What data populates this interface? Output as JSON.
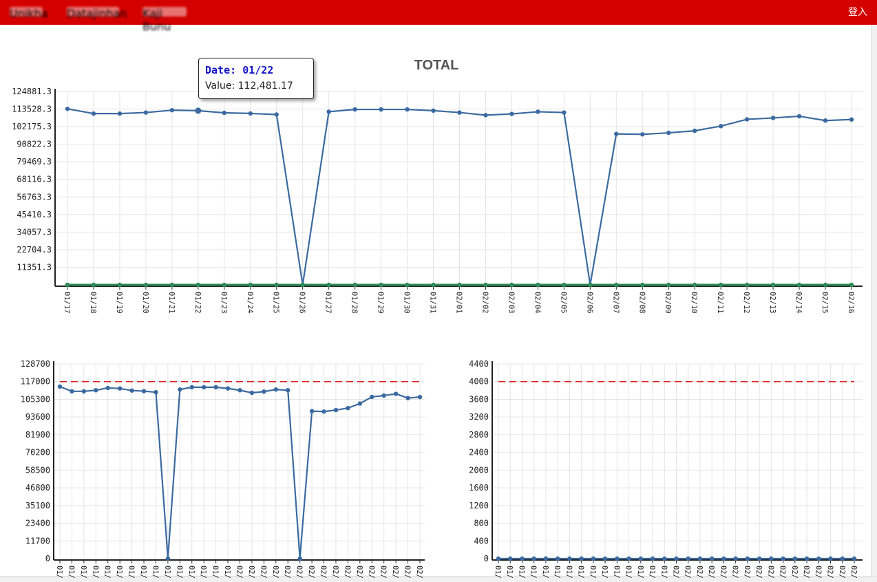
{
  "header": {
    "nav": [
      "Unikha",
      "Datajinhan",
      "Kaji Bunu"
    ],
    "login": "登入"
  },
  "tooltip": {
    "date_label": "Date:",
    "date": "01/22",
    "value_label": "Value:",
    "value": "112,481.17"
  },
  "colors": {
    "brand": "#d40000",
    "series": "#3a6aa0",
    "zero_series": "#2e8b57",
    "threshold": "#e02020"
  },
  "chart_data": [
    {
      "type": "line",
      "title": "TOTAL",
      "categories": [
        "01/17",
        "01/18",
        "01/19",
        "01/20",
        "01/21",
        "01/22",
        "01/23",
        "01/24",
        "01/25",
        "01/26",
        "01/27",
        "01/28",
        "01/29",
        "01/30",
        "01/31",
        "02/01",
        "02/02",
        "02/03",
        "02/04",
        "02/05",
        "02/06",
        "02/07",
        "02/08",
        "02/09",
        "02/10",
        "02/11",
        "02/12",
        "02/13",
        "02/14",
        "02/15",
        "02/16"
      ],
      "yticks": [
        "124881.3",
        "113528.3",
        "102175.3",
        "90822.3",
        "79469.3",
        "68116.3",
        "56763.3",
        "45410.3",
        "34057.3",
        "22704.3",
        "11351.3"
      ],
      "ylim": [
        0,
        124881.3
      ],
      "grid": true,
      "series": [
        {
          "values": [
            113700,
            110600,
            110600,
            111300,
            112800,
            112481,
            111100,
            110700,
            110000,
            0,
            111800,
            113300,
            113300,
            113300,
            112500,
            111300,
            109600,
            110400,
            111800,
            111300,
            0,
            97500,
            97200,
            98200,
            99500,
            102500,
            106900,
            107800,
            108900,
            106100,
            106800
          ]
        },
        {
          "values": [
            0,
            0,
            0,
            0,
            0,
            0,
            0,
            0,
            0,
            0,
            0,
            0,
            0,
            0,
            0,
            0,
            0,
            0,
            0,
            0,
            0,
            0,
            0,
            0,
            0,
            0,
            0,
            0,
            0,
            0,
            0
          ]
        }
      ]
    },
    {
      "type": "line",
      "categories": [
        "01/",
        "01/",
        "01/",
        "01/",
        "01/",
        "01/",
        "01/",
        "01/",
        "01/",
        "01/",
        "01/",
        "01/",
        "01/",
        "01/",
        "01/",
        "02/",
        "02/",
        "02/",
        "02/",
        "02/",
        "02/",
        "02/",
        "02/",
        "02/",
        "02/",
        "02/",
        "02/",
        "02/",
        "02/",
        "02/",
        "02/"
      ],
      "yticks": [
        "128700",
        "117000",
        "105300",
        "93600",
        "81900",
        "70200",
        "58500",
        "46800",
        "35100",
        "23400",
        "11700",
        "0"
      ],
      "ylim": [
        0,
        128700
      ],
      "threshold": 117000,
      "grid": true,
      "series": [
        {
          "values": [
            113700,
            110600,
            110600,
            111300,
            112800,
            112481,
            111100,
            110700,
            110000,
            0,
            111800,
            113300,
            113300,
            113300,
            112500,
            111300,
            109600,
            110400,
            111800,
            111300,
            0,
            97500,
            97200,
            98200,
            99500,
            102500,
            106900,
            107800,
            108900,
            106100,
            106800
          ]
        }
      ]
    },
    {
      "type": "line",
      "categories": [
        "01/",
        "01/",
        "01/",
        "01/",
        "01/",
        "01/",
        "01/",
        "01/",
        "01/",
        "01/",
        "01/",
        "01/",
        "01/",
        "01/",
        "01/",
        "02/",
        "02/",
        "02/",
        "02/",
        "02/",
        "02/",
        "02/",
        "02/",
        "02/",
        "02/",
        "02/",
        "02/",
        "02/",
        "02/",
        "02/",
        "02/"
      ],
      "yticks": [
        "4400",
        "4000",
        "3600",
        "3200",
        "2800",
        "2400",
        "2000",
        "1600",
        "1200",
        "800",
        "400",
        "0"
      ],
      "ylim": [
        0,
        4400
      ],
      "threshold": 4000,
      "grid": true,
      "series": [
        {
          "values": [
            0,
            0,
            0,
            0,
            0,
            0,
            0,
            0,
            0,
            0,
            0,
            0,
            0,
            0,
            0,
            0,
            0,
            0,
            0,
            0,
            0,
            0,
            0,
            0,
            0,
            0,
            0,
            0,
            0,
            0,
            0
          ]
        }
      ]
    }
  ]
}
